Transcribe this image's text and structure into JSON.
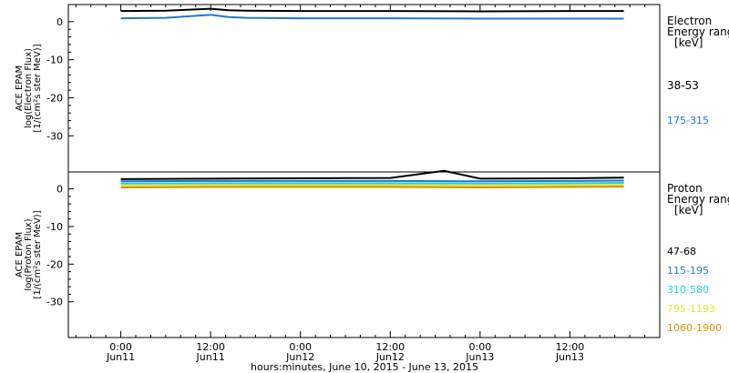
{
  "chart_data": [
    {
      "type": "line",
      "ylabel_lines": [
        "ACE EPAM",
        "log(Electron Flux)",
        "[1/(cm²s ster MeV)]"
      ],
      "legend_title_lines": [
        "Electron",
        "Energy ranges",
        "[keV]"
      ],
      "yticks": [
        0,
        -10,
        -20,
        -30
      ],
      "ylim": [
        -39.5,
        4.5
      ],
      "series": [
        {
          "name": "38-53",
          "color": "#000000",
          "x": [
            0,
            0.25,
            0.5,
            0.6,
            0.7,
            1.0,
            1.5,
            2.0,
            2.5,
            2.8
          ],
          "y": [
            2.8,
            2.9,
            3.4,
            3.0,
            2.9,
            2.8,
            2.8,
            2.7,
            2.8,
            2.8
          ]
        },
        {
          "name": "175-315",
          "color": "#1E78D6",
          "x": [
            0,
            0.25,
            0.5,
            0.6,
            0.7,
            1.0,
            1.5,
            2.0,
            2.5,
            2.8
          ],
          "y": [
            0.9,
            1.0,
            1.8,
            1.2,
            1.0,
            0.9,
            0.9,
            0.8,
            0.8,
            0.8
          ]
        }
      ]
    },
    {
      "type": "line",
      "ylabel_lines": [
        "ACE EPAM",
        "log(Proton Flux)",
        "[1/(cm²s ster MeV)]"
      ],
      "legend_title_lines": [
        "Proton",
        "Energy ranges",
        "[keV]"
      ],
      "yticks": [
        0,
        -10,
        -20,
        -30
      ],
      "ylim": [
        -39.5,
        4.5
      ],
      "series": [
        {
          "name": "47-68",
          "color": "#000000",
          "x": [
            0,
            0.5,
            1.0,
            1.5,
            1.8,
            2.0,
            2.5,
            2.8
          ],
          "y": [
            2.6,
            2.7,
            2.8,
            2.9,
            4.8,
            2.7,
            2.8,
            3.0
          ]
        },
        {
          "name": "115-195",
          "color": "#1E78D6",
          "x": [
            0,
            0.5,
            1.0,
            1.5,
            2.0,
            2.5,
            2.8
          ],
          "y": [
            2.0,
            2.1,
            2.1,
            2.1,
            2.0,
            2.1,
            2.2
          ]
        },
        {
          "name": "310-580",
          "color": "#22D3D3",
          "x": [
            0,
            0.5,
            1.0,
            1.5,
            2.0,
            2.5,
            2.8
          ],
          "y": [
            1.4,
            1.5,
            1.5,
            1.5,
            1.4,
            1.5,
            1.6
          ]
        },
        {
          "name": "795-1193",
          "color": "#E6E62E",
          "x": [
            0,
            0.5,
            1.0,
            1.5,
            2.0,
            2.5,
            2.8
          ],
          "y": [
            0.9,
            1.0,
            1.0,
            1.0,
            0.9,
            1.0,
            1.1
          ]
        },
        {
          "name": "1060-1900",
          "color": "#E68A00",
          "x": [
            0,
            0.5,
            1.0,
            1.5,
            2.0,
            2.5,
            2.8
          ],
          "y": [
            0.4,
            0.5,
            0.5,
            0.5,
            0.4,
            0.5,
            0.6
          ]
        }
      ]
    }
  ],
  "x_axis": {
    "xlim": [
      -0.292,
      3.0
    ],
    "major_ticks": [
      0,
      0.5,
      1.0,
      1.5,
      2.0,
      2.5,
      3.0
    ],
    "tick_labels": [
      {
        "x": 0,
        "time": "0:00",
        "day": "Jun11"
      },
      {
        "x": 0.5,
        "time": "12:00",
        "day": "Jun11"
      },
      {
        "x": 1.0,
        "time": "0:00",
        "day": "Jun12"
      },
      {
        "x": 1.5,
        "time": "12:00",
        "day": "Jun12"
      },
      {
        "x": 2.0,
        "time": "0:00",
        "day": "Jun13"
      },
      {
        "x": 2.5,
        "time": "12:00",
        "day": "Jun13"
      }
    ],
    "title": "hours:minutes, June 10, 2015 - June 13, 2015"
  }
}
